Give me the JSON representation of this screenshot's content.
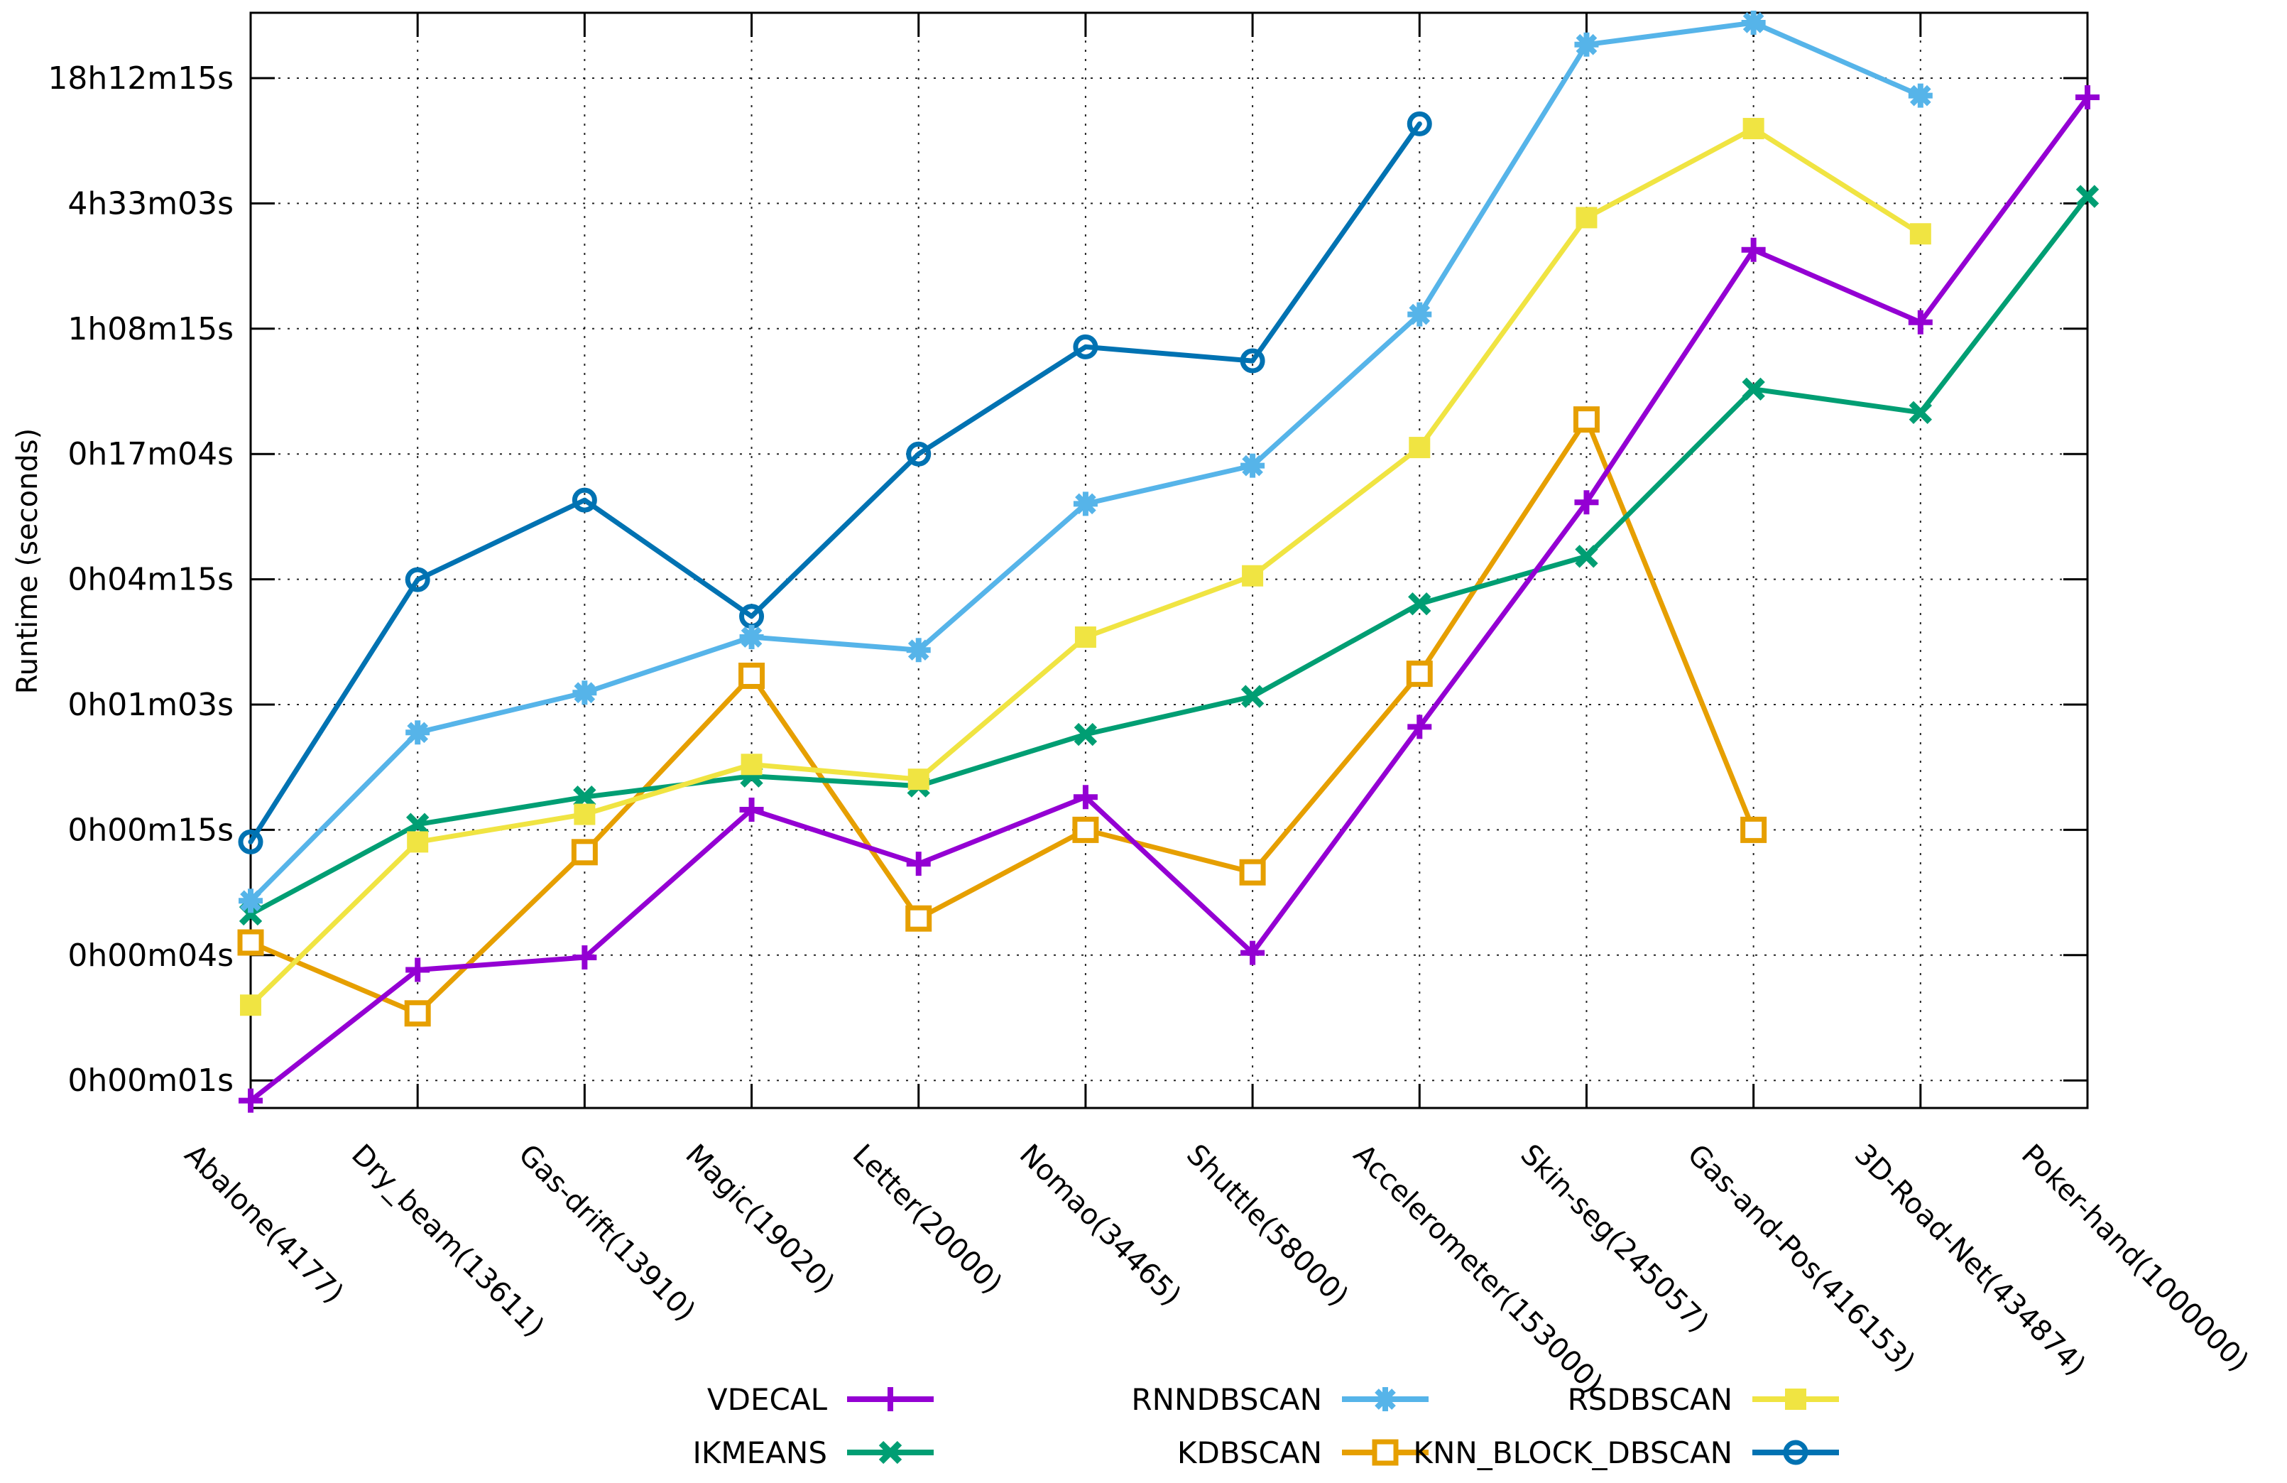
{
  "chart_data": {
    "type": "line",
    "title": "",
    "ylabel": "Runtime (seconds)",
    "xlabel": "",
    "y_scale": "log base 4 (seconds)",
    "grid": "dotted",
    "legend_position": "bottom",
    "y_ticks": [
      {
        "label": "18h12m15s",
        "seconds": 65536
      },
      {
        "label": "4h33m03s",
        "seconds": 16384
      },
      {
        "label": "1h08m15s",
        "seconds": 4096
      },
      {
        "label": "0h17m04s",
        "seconds": 1024
      },
      {
        "label": "0h04m15s",
        "seconds": 256
      },
      {
        "label": "0h01m03s",
        "seconds": 64
      },
      {
        "label": "0h00m15s",
        "seconds": 16
      },
      {
        "label": "0h00m04s",
        "seconds": 4
      },
      {
        "label": "0h00m01s",
        "seconds": 1
      }
    ],
    "categories": [
      "Abalone(4177)",
      "Dry_beam(13611)",
      "Gas-drift(13910)",
      "Magic(19020)",
      "Letter(20000)",
      "Nomao(34465)",
      "Shuttle(58000)",
      "Accelerometer(153000)",
      "Skin-seg(245057)",
      "Gas-and-Pos(416153)",
      "3D-Road-Net(434874)",
      "Poker-hand(1000000)"
    ],
    "series": [
      {
        "name": "VDECAL",
        "color": "#9400d3",
        "marker": "plus",
        "values": [
          0.8,
          3.4,
          3.9,
          20,
          11,
          23,
          4.1,
          50,
          600,
          9800,
          4400,
          53000
        ]
      },
      {
        "name": "RNNDBSCAN",
        "color": "#56b4e9",
        "marker": "asterisk",
        "values": [
          7.3,
          47,
          73,
          135,
          117,
          590,
          900,
          4800,
          95000,
          121000,
          54000,
          null
        ]
      },
      {
        "name": "RSDBSCAN",
        "color": "#f0e442",
        "marker": "square",
        "values": [
          2.3,
          14,
          19,
          33,
          28,
          135,
          266,
          1100,
          14000,
          37500,
          11700,
          null
        ]
      },
      {
        "name": "IKMEANS",
        "color": "#009e73",
        "marker": "x",
        "values": [
          6.3,
          17,
          23,
          29,
          26,
          46,
          70,
          195,
          330,
          2100,
          1620,
          17700
        ]
      },
      {
        "name": "KDBSCAN",
        "color": "#e69f00",
        "marker": "open-square",
        "values": [
          4.6,
          2.1,
          12.5,
          88,
          6,
          16,
          10,
          90,
          1500,
          16,
          null,
          null
        ]
      },
      {
        "name": "KNN_BLOCK_DBSCAN",
        "color": "#0072b2",
        "marker": "open-circle",
        "values": [
          14,
          255,
          615,
          170,
          1024,
          3350,
          2870,
          39500,
          null,
          null,
          null,
          null
        ]
      }
    ],
    "legend_rows": [
      [
        "VDECAL",
        "RNNDBSCAN",
        "RSDBSCAN"
      ],
      [
        "IKMEANS",
        "KDBSCAN",
        "KNN_BLOCK_DBSCAN"
      ]
    ]
  }
}
